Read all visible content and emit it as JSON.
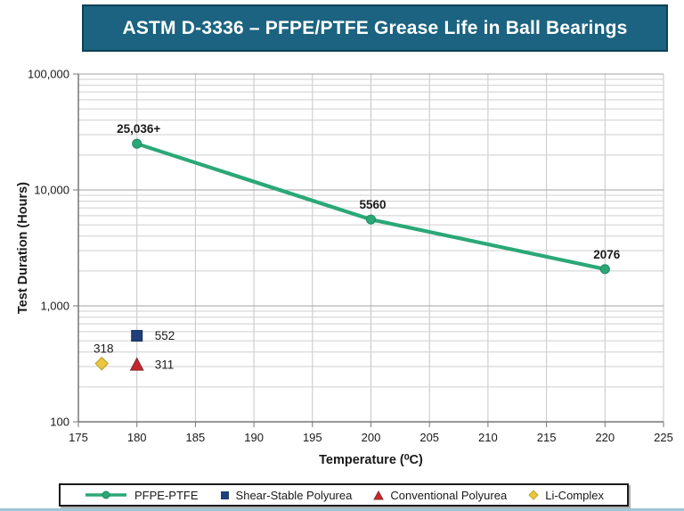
{
  "title": "ASTM D-3336 – PFPE/PTFE Grease Life in Ball Bearings",
  "colors": {
    "title_bg": "#1B6380",
    "title_border": "#0E4155",
    "title_text": "#FFFFFF",
    "grid_minor": "#CFCFCF",
    "grid_major": "#A2A2A2",
    "grid_vertical": "#C6C6C6",
    "axis": "#767676",
    "text": "#1A1A1A",
    "legend_border": "#1A1A1A",
    "bottom_strip": "#9FC6D4"
  },
  "chart_data": {
    "type": "line",
    "title": "ASTM D-3336 – PFPE/PTFE Grease Life in Ball Bearings",
    "xlabel": "Temperature (⁰C)",
    "ylabel": "Test Duration (Hours)",
    "xlim": [
      175,
      225
    ],
    "x_ticks": [
      175,
      180,
      185,
      190,
      195,
      200,
      205,
      210,
      215,
      220,
      225
    ],
    "y_scale": "log",
    "ylim": [
      100,
      100000
    ],
    "y_major_ticks": [
      100,
      1000,
      10000,
      100000
    ],
    "grid": true,
    "legend_position": "bottom",
    "series": [
      {
        "name": "PFPE-PTFE",
        "draw": "line",
        "marker": "circle",
        "color": "#2AA877",
        "stroke": "#1E8A61",
        "labels_bold": true,
        "points": [
          {
            "x": 180,
            "y": 25036,
            "label": "25,036+",
            "label_side": "above"
          },
          {
            "x": 200,
            "y": 5560,
            "label": "5560",
            "label_side": "above"
          },
          {
            "x": 220,
            "y": 2076,
            "label": "2076",
            "label_side": "above"
          }
        ]
      },
      {
        "name": "Shear-Stable Polyurea",
        "draw": "scatter",
        "marker": "square",
        "color": "#1F4078",
        "stroke": "#17305B",
        "labels_bold": false,
        "points": [
          {
            "x": 180,
            "y": 552,
            "label": "552",
            "label_side": "right"
          }
        ]
      },
      {
        "name": "Conventional Polyurea",
        "draw": "scatter",
        "marker": "triangle",
        "color": "#C9242D",
        "stroke": "#8A2F2F",
        "labels_bold": false,
        "points": [
          {
            "x": 180,
            "y": 311,
            "label": "311",
            "label_side": "right"
          }
        ]
      },
      {
        "name": "Li-Complex",
        "draw": "scatter",
        "marker": "diamond",
        "color": "#EAC73F",
        "stroke": "#C7A433",
        "labels_bold": false,
        "points": [
          {
            "x": 177,
            "y": 318,
            "label": "318",
            "label_side": "above"
          }
        ]
      }
    ]
  }
}
